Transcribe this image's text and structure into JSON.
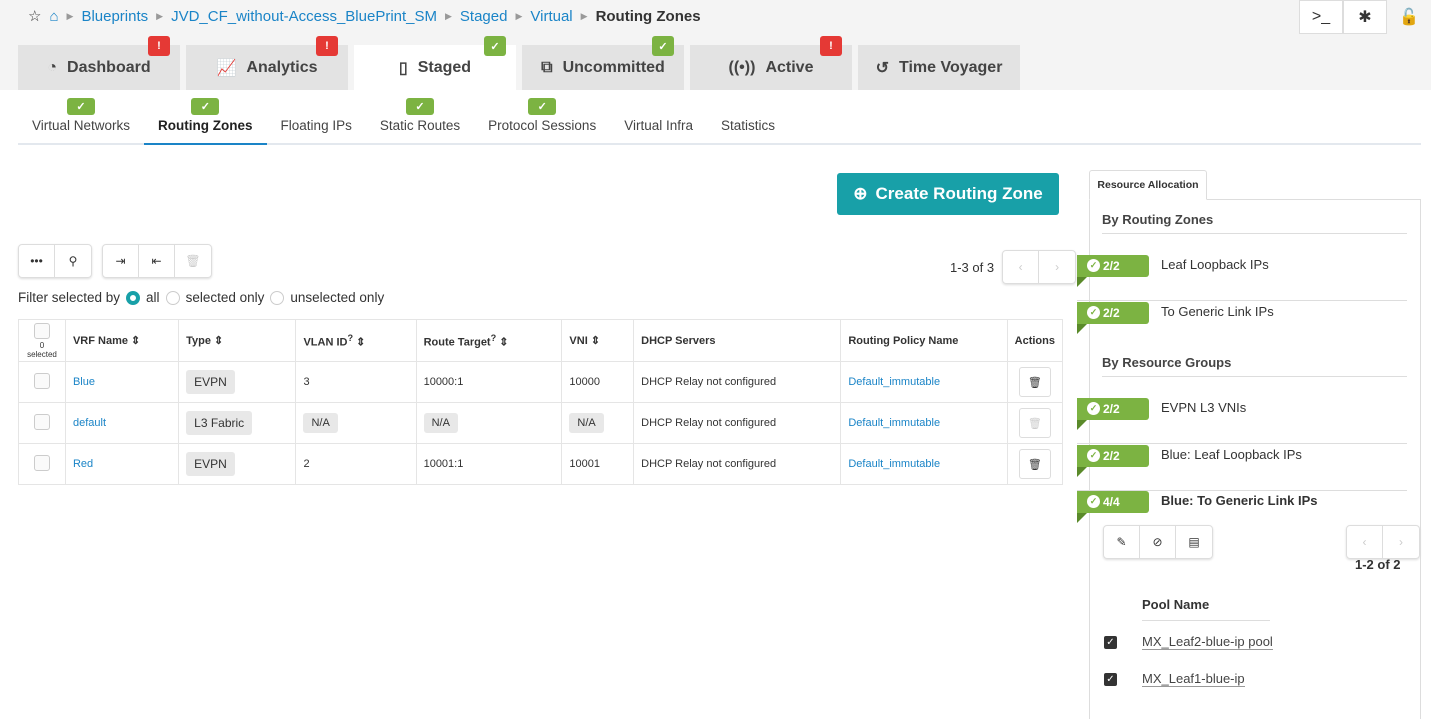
{
  "breadcrumb": {
    "items": [
      "Blueprints",
      "JVD_CF_without-Access_BluePrint_SM",
      "Staged",
      "Virtual"
    ],
    "current": "Routing Zones"
  },
  "main_tabs": [
    {
      "label": "Dashboard",
      "icon": "dashboard-icon",
      "status": "error"
    },
    {
      "label": "Analytics",
      "icon": "chart-icon",
      "status": "error"
    },
    {
      "label": "Staged",
      "icon": "document-icon",
      "status": "ok"
    },
    {
      "label": "Uncommitted",
      "icon": "uncommitted-icon",
      "status": "ok"
    },
    {
      "label": "Active",
      "icon": "active-icon",
      "status": "error"
    },
    {
      "label": "Time Voyager",
      "icon": "history-icon",
      "status": ""
    }
  ],
  "sub_tabs": [
    {
      "label": "Virtual Networks",
      "status": "ok"
    },
    {
      "label": "Routing Zones",
      "status": "ok"
    },
    {
      "label": "Floating IPs",
      "status": ""
    },
    {
      "label": "Static Routes",
      "status": "ok"
    },
    {
      "label": "Protocol Sessions",
      "status": "ok"
    },
    {
      "label": "Virtual Infra",
      "status": ""
    },
    {
      "label": "Statistics",
      "status": ""
    }
  ],
  "create_button": "Create Routing Zone",
  "pagination": "1-3 of 3",
  "filter": {
    "label": "Filter selected by",
    "options": [
      "all",
      "selected only",
      "unselected only"
    ],
    "selected": "all"
  },
  "table": {
    "selected_count": "0 selected",
    "headers": [
      "VRF Name",
      "Type",
      "VLAN ID",
      "Route Target",
      "VNI",
      "DHCP Servers",
      "Routing Policy Name",
      "Actions"
    ],
    "rows": [
      {
        "vrf": "Blue",
        "type": "EVPN",
        "vlan": "3",
        "rt": "10000:1",
        "vni": "10000",
        "dhcp": "DHCP Relay not configured",
        "policy": "Default_immutable"
      },
      {
        "vrf": "default",
        "type": "L3 Fabric",
        "vlan": "N/A",
        "rt": "N/A",
        "vni": "N/A",
        "dhcp": "DHCP Relay not configured",
        "policy": "Default_immutable"
      },
      {
        "vrf": "Red",
        "type": "EVPN",
        "vlan": "2",
        "rt": "10001:1",
        "vni": "10001",
        "dhcp": "DHCP Relay not configured",
        "policy": "Default_immutable"
      }
    ]
  },
  "side": {
    "tab": "Resource Allocation",
    "by_rz": "By Routing Zones",
    "rz_items": [
      {
        "count": "2/2",
        "label": "Leaf Loopback IPs"
      },
      {
        "count": "2/2",
        "label": "To Generic Link IPs"
      }
    ],
    "by_rg": "By Resource Groups",
    "rg_items": [
      {
        "count": "2/2",
        "label": "EVPN L3 VNIs"
      },
      {
        "count": "2/2",
        "label": "Blue: Leaf Loopback IPs"
      },
      {
        "count": "4/4",
        "label": "Blue: To Generic Link IPs"
      }
    ],
    "pagination": "1-2 of 2",
    "pool_header": "Pool Name",
    "pools": [
      "MX_Leaf2-blue-ip pool",
      "MX_Leaf1-blue-ip"
    ]
  },
  "colors": {
    "accent": "#18a0a8",
    "ok": "#7cb342",
    "error": "#e53935",
    "link": "#1a84c7"
  }
}
